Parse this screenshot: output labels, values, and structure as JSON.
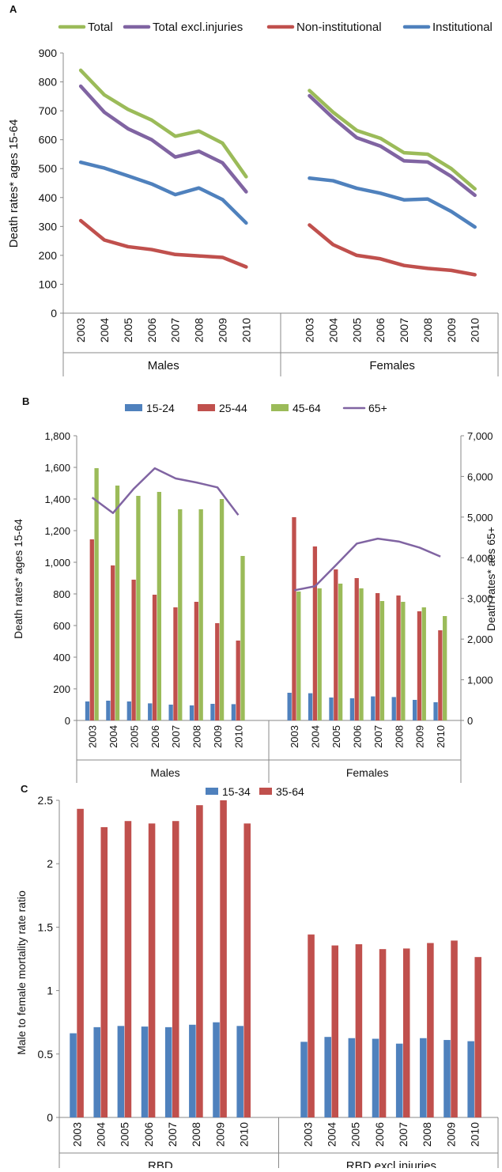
{
  "panels": [
    {
      "label": "A",
      "chart_data": {
        "type": "line",
        "ylabel": "Death rates* ages 15-64",
        "ylim": [
          0,
          900
        ],
        "yticks": [
          "0",
          "100",
          "200",
          "300",
          "400",
          "500",
          "600",
          "700",
          "800",
          "900"
        ],
        "groups": [
          "Males",
          "Females"
        ],
        "categories": [
          "2003",
          "2004",
          "2005",
          "2006",
          "2007",
          "2008",
          "2009",
          "2010"
        ],
        "legend_position": "top",
        "series": [
          {
            "name": "Total",
            "color": "#9BBB59",
            "values": {
              "Males": [
                840,
                755,
                705,
                668,
                612,
                630,
                588,
                472
              ],
              "Females": [
                770,
                695,
                632,
                605,
                555,
                550,
                500,
                430
              ]
            }
          },
          {
            "name": "Total excl.injuries",
            "color": "#8064A2",
            "values": {
              "Males": [
                785,
                695,
                638,
                600,
                540,
                560,
                520,
                420
              ],
              "Females": [
                752,
                675,
                607,
                578,
                527,
                523,
                473,
                408
              ]
            }
          },
          {
            "name": "Non-institutional",
            "color": "#C0504D",
            "values": {
              "Males": [
                320,
                253,
                230,
                220,
                203,
                198,
                193,
                160
              ],
              "Females": [
                305,
                237,
                200,
                188,
                165,
                155,
                148,
                133
              ]
            }
          },
          {
            "name": "Institutional",
            "color": "#4F81BD",
            "values": {
              "Males": [
                522,
                502,
                475,
                447,
                410,
                433,
                393,
                312
              ],
              "Females": [
                467,
                458,
                432,
                415,
                392,
                395,
                352,
                298
              ]
            }
          }
        ]
      }
    },
    {
      "label": "B",
      "chart_data": {
        "type": "bar",
        "ylabel": "Death rates* ages 15-64",
        "y2label": "Death rates* aes 65+",
        "ylim": [
          0,
          1800
        ],
        "y2lim": [
          0,
          7000
        ],
        "yticks": [
          "0",
          "200",
          "400",
          "600",
          "800",
          "1,000",
          "1,200",
          "1,400",
          "1,600",
          "1,800"
        ],
        "y2ticks": [
          "0",
          "1,000",
          "2,000",
          "3,000",
          "4,000",
          "5,000",
          "6,000",
          "7,000"
        ],
        "groups": [
          "Males",
          "Females"
        ],
        "categories": [
          "2003",
          "2004",
          "2005",
          "2006",
          "2007",
          "2008",
          "2009",
          "2010"
        ],
        "legend_position": "top",
        "series": [
          {
            "name": "15-24",
            "color": "#4F81BD",
            "axis": "left",
            "values": {
              "Males": [
                120,
                125,
                120,
                108,
                100,
                95,
                105,
                103
              ],
              "Females": [
                175,
                172,
                145,
                140,
                152,
                148,
                130,
                115
              ]
            }
          },
          {
            "name": "25-44",
            "color": "#C0504D",
            "axis": "left",
            "values": {
              "Males": [
                1145,
                980,
                890,
                795,
                715,
                750,
                615,
                505
              ],
              "Females": [
                1285,
                1100,
                955,
                900,
                805,
                790,
                690,
                570
              ]
            }
          },
          {
            "name": "45-64",
            "color": "#9BBB59",
            "axis": "left",
            "values": {
              "Males": [
                1595,
                1485,
                1420,
                1445,
                1335,
                1335,
                1400,
                1040
              ],
              "Females": [
                815,
                835,
                865,
                835,
                755,
                750,
                715,
                660
              ]
            }
          },
          {
            "name": "65+",
            "color": "#8064A2",
            "axis": "right",
            "type": "line",
            "values": {
              "Males": [
                5480,
                5100,
                5700,
                6200,
                5950,
                5850,
                5730,
                5050
              ],
              "Females": [
                3200,
                3300,
                3820,
                4350,
                4470,
                4400,
                4250,
                4030
              ]
            }
          }
        ]
      }
    },
    {
      "label": "C",
      "chart_data": {
        "type": "bar",
        "ylabel": "Male to female mortality rate ratio",
        "ylim": [
          0,
          2.6
        ],
        "yticks": [
          "0",
          "0.5",
          "1",
          "1.5",
          "2",
          "2.5"
        ],
        "groups": [
          "RBD",
          "RBD excl.injuries"
        ],
        "categories": [
          "2003",
          "2004",
          "2005",
          "2006",
          "2007",
          "2008",
          "2009",
          "2010"
        ],
        "legend_position": "top",
        "series": [
          {
            "name": "15-34",
            "color": "#4F81BD",
            "values": {
              "RBD": [
                0.69,
                0.74,
                0.75,
                0.745,
                0.74,
                0.76,
                0.78,
                0.75
              ],
              "RBD excl.injuries": [
                0.62,
                0.66,
                0.65,
                0.645,
                0.605,
                0.65,
                0.635,
                0.625
              ]
            }
          },
          {
            "name": "35-64",
            "color": "#C0504D",
            "values": {
              "RBD": [
                2.53,
                2.38,
                2.43,
                2.41,
                2.43,
                2.56,
                2.6,
                2.41
              ],
              "RBD excl.injuries": [
                1.5,
                1.41,
                1.42,
                1.38,
                1.385,
                1.43,
                1.45,
                1.315
              ]
            }
          }
        ]
      }
    }
  ]
}
